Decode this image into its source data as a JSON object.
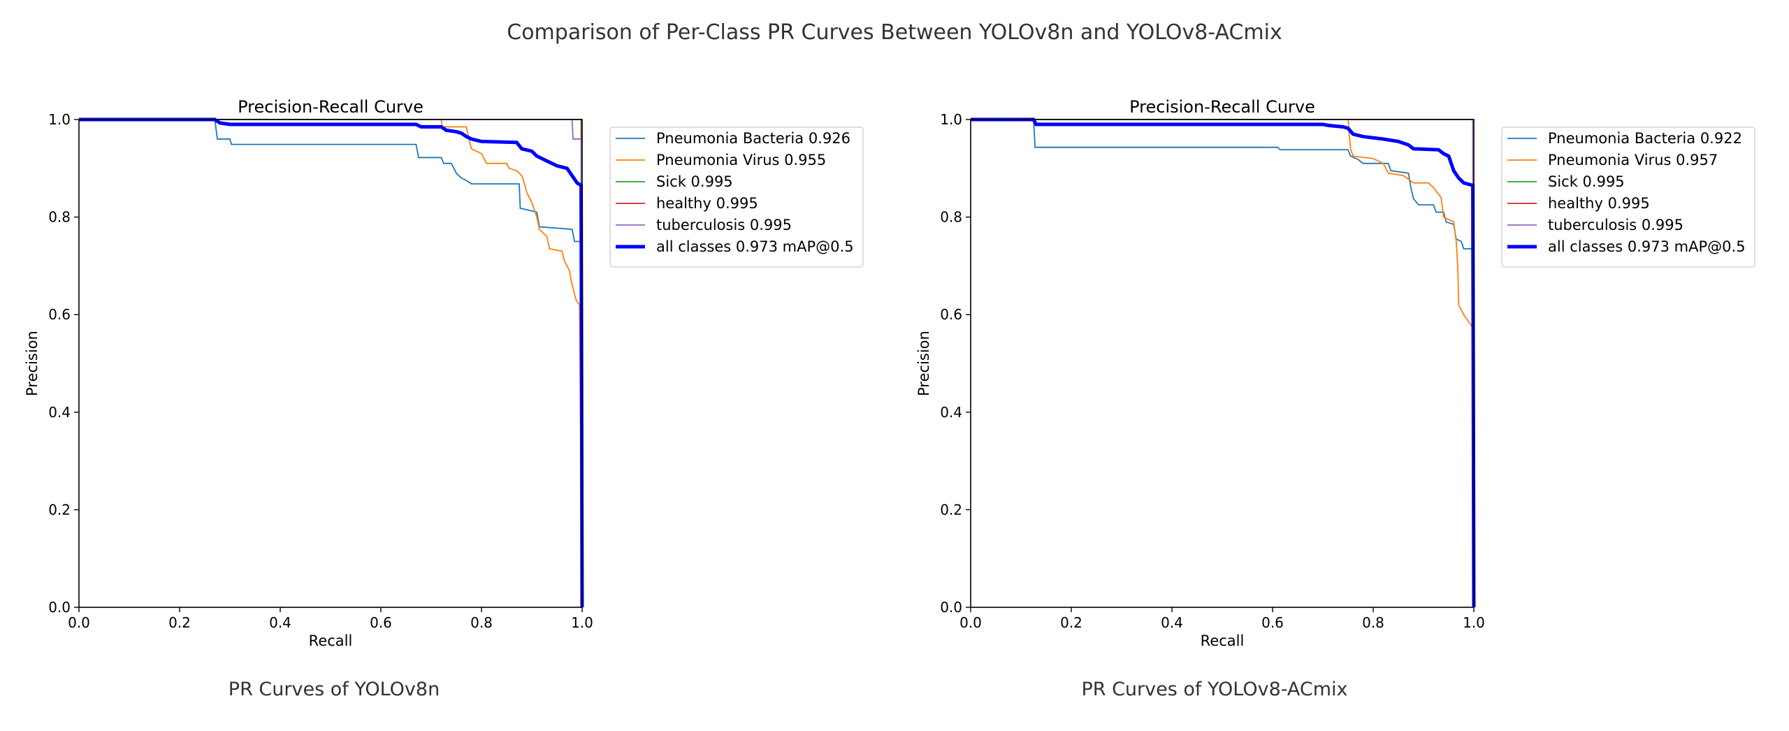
{
  "figure": {
    "title": "Comparison of Per-Class PR Curves Between YOLOv8n and YOLOv8-ACmix",
    "panel_captions": [
      "PR Curves of YOLOv8n",
      "PR Curves of YOLOv8-ACmix"
    ]
  },
  "chart_data": [
    {
      "type": "line",
      "title": "Precision-Recall Curve",
      "xlabel": "Recall",
      "ylabel": "Precision",
      "xlim": [
        0,
        1
      ],
      "ylim": [
        0,
        1
      ],
      "xticks": [
        "0.0",
        "0.2",
        "0.4",
        "0.6",
        "0.8",
        "1.0"
      ],
      "yticks": [
        "0.0",
        "0.2",
        "0.4",
        "0.6",
        "0.8",
        "1.0"
      ],
      "legend_position": "outside-right-top",
      "series": [
        {
          "name": "Pneumonia Bacteria 0.926",
          "color": "#1f77b4",
          "bold": false,
          "points": [
            [
              0,
              1.0
            ],
            [
              0.27,
              1.0
            ],
            [
              0.275,
              0.96
            ],
            [
              0.3,
              0.96
            ],
            [
              0.303,
              0.949
            ],
            [
              0.67,
              0.949
            ],
            [
              0.675,
              0.922
            ],
            [
              0.72,
              0.922
            ],
            [
              0.725,
              0.91
            ],
            [
              0.74,
              0.91
            ],
            [
              0.745,
              0.9
            ],
            [
              0.75,
              0.89
            ],
            [
              0.76,
              0.88
            ],
            [
              0.77,
              0.875
            ],
            [
              0.78,
              0.868
            ],
            [
              0.875,
              0.868
            ],
            [
              0.877,
              0.818
            ],
            [
              0.89,
              0.815
            ],
            [
              0.91,
              0.81
            ],
            [
              0.915,
              0.78
            ],
            [
              0.98,
              0.775
            ],
            [
              0.985,
              0.75
            ],
            [
              0.998,
              0.75
            ],
            [
              1.0,
              0.0
            ]
          ]
        },
        {
          "name": "Pneumonia Virus 0.955",
          "color": "#ff7f0e",
          "bold": false,
          "points": [
            [
              0,
              1.0
            ],
            [
              0.72,
              1.0
            ],
            [
              0.722,
              0.985
            ],
            [
              0.77,
              0.985
            ],
            [
              0.775,
              0.96
            ],
            [
              0.78,
              0.94
            ],
            [
              0.8,
              0.93
            ],
            [
              0.81,
              0.91
            ],
            [
              0.85,
              0.91
            ],
            [
              0.855,
              0.9
            ],
            [
              0.87,
              0.895
            ],
            [
              0.88,
              0.885
            ],
            [
              0.885,
              0.87
            ],
            [
              0.89,
              0.85
            ],
            [
              0.9,
              0.83
            ],
            [
              0.91,
              0.8
            ],
            [
              0.915,
              0.775
            ],
            [
              0.93,
              0.76
            ],
            [
              0.935,
              0.735
            ],
            [
              0.96,
              0.73
            ],
            [
              0.965,
              0.71
            ],
            [
              0.97,
              0.7
            ],
            [
              0.975,
              0.69
            ],
            [
              0.978,
              0.67
            ],
            [
              0.983,
              0.65
            ],
            [
              0.988,
              0.63
            ],
            [
              0.995,
              0.62
            ],
            [
              1.0,
              0.0
            ]
          ]
        },
        {
          "name": "Sick 0.995",
          "color": "#2ca02c",
          "bold": false,
          "points": [
            [
              0,
              1.0
            ],
            [
              0.998,
              1.0
            ],
            [
              1.0,
              0.0
            ]
          ]
        },
        {
          "name": "healthy 0.995",
          "color": "#d62728",
          "bold": false,
          "points": [
            [
              0,
              1.0
            ],
            [
              0.999,
              1.0
            ],
            [
              1.0,
              0.0
            ]
          ]
        },
        {
          "name": "tuberculosis 0.995",
          "color": "#9467bd",
          "bold": false,
          "points": [
            [
              0,
              1.0
            ],
            [
              0.98,
              1.0
            ],
            [
              0.982,
              0.96
            ],
            [
              0.998,
              0.96
            ],
            [
              1.0,
              0.0
            ]
          ]
        },
        {
          "name": "all classes 0.973 mAP@0.5",
          "color": "#0000ff",
          "bold": true,
          "points": [
            [
              0,
              1.0
            ],
            [
              0.27,
              1.0
            ],
            [
              0.28,
              0.993
            ],
            [
              0.3,
              0.99
            ],
            [
              0.67,
              0.99
            ],
            [
              0.68,
              0.985
            ],
            [
              0.72,
              0.985
            ],
            [
              0.73,
              0.978
            ],
            [
              0.75,
              0.975
            ],
            [
              0.76,
              0.972
            ],
            [
              0.77,
              0.965
            ],
            [
              0.78,
              0.96
            ],
            [
              0.8,
              0.955
            ],
            [
              0.87,
              0.953
            ],
            [
              0.88,
              0.94
            ],
            [
              0.9,
              0.935
            ],
            [
              0.91,
              0.925
            ],
            [
              0.93,
              0.915
            ],
            [
              0.95,
              0.905
            ],
            [
              0.97,
              0.9
            ],
            [
              0.98,
              0.885
            ],
            [
              0.99,
              0.87
            ],
            [
              0.998,
              0.865
            ],
            [
              1.0,
              0.0
            ]
          ]
        }
      ]
    },
    {
      "type": "line",
      "title": "Precision-Recall Curve",
      "xlabel": "Recall",
      "ylabel": "Precision",
      "xlim": [
        0,
        1
      ],
      "ylim": [
        0,
        1
      ],
      "xticks": [
        "0.0",
        "0.2",
        "0.4",
        "0.6",
        "0.8",
        "1.0"
      ],
      "yticks": [
        "0.0",
        "0.2",
        "0.4",
        "0.6",
        "0.8",
        "1.0"
      ],
      "legend_position": "outside-right-top",
      "series": [
        {
          "name": "Pneumonia Bacteria 0.922",
          "color": "#1f77b4",
          "bold": false,
          "points": [
            [
              0,
              1.0
            ],
            [
              0.125,
              1.0
            ],
            [
              0.128,
              0.943
            ],
            [
              0.61,
              0.943
            ],
            [
              0.615,
              0.938
            ],
            [
              0.75,
              0.938
            ],
            [
              0.755,
              0.925
            ],
            [
              0.77,
              0.918
            ],
            [
              0.78,
              0.91
            ],
            [
              0.83,
              0.91
            ],
            [
              0.835,
              0.895
            ],
            [
              0.87,
              0.89
            ],
            [
              0.875,
              0.86
            ],
            [
              0.88,
              0.838
            ],
            [
              0.89,
              0.825
            ],
            [
              0.92,
              0.825
            ],
            [
              0.925,
              0.81
            ],
            [
              0.94,
              0.81
            ],
            [
              0.945,
              0.79
            ],
            [
              0.96,
              0.785
            ],
            [
              0.965,
              0.755
            ],
            [
              0.975,
              0.75
            ],
            [
              0.98,
              0.735
            ],
            [
              0.998,
              0.735
            ],
            [
              1.0,
              0.0
            ]
          ]
        },
        {
          "name": "Pneumonia Virus 0.957",
          "color": "#ff7f0e",
          "bold": false,
          "points": [
            [
              0,
              1.0
            ],
            [
              0.75,
              1.0
            ],
            [
              0.755,
              0.94
            ],
            [
              0.76,
              0.925
            ],
            [
              0.8,
              0.92
            ],
            [
              0.82,
              0.91
            ],
            [
              0.83,
              0.89
            ],
            [
              0.86,
              0.885
            ],
            [
              0.88,
              0.87
            ],
            [
              0.91,
              0.87
            ],
            [
              0.92,
              0.86
            ],
            [
              0.935,
              0.84
            ],
            [
              0.94,
              0.8
            ],
            [
              0.96,
              0.79
            ],
            [
              0.965,
              0.75
            ],
            [
              0.968,
              0.7
            ],
            [
              0.97,
              0.62
            ],
            [
              0.98,
              0.6
            ],
            [
              0.99,
              0.585
            ],
            [
              1.0,
              0.57
            ],
            [
              1.0,
              0.0
            ]
          ]
        },
        {
          "name": "Sick 0.995",
          "color": "#2ca02c",
          "bold": false,
          "points": [
            [
              0,
              1.0
            ],
            [
              0.998,
              1.0
            ],
            [
              1.0,
              0.0
            ]
          ]
        },
        {
          "name": "healthy 0.995",
          "color": "#d62728",
          "bold": false,
          "points": [
            [
              0,
              1.0
            ],
            [
              0.999,
              1.0
            ],
            [
              1.0,
              0.0
            ]
          ]
        },
        {
          "name": "tuberculosis 0.995",
          "color": "#9467bd",
          "bold": false,
          "points": [
            [
              0,
              1.0
            ],
            [
              0.998,
              1.0
            ],
            [
              1.0,
              0.0
            ]
          ]
        },
        {
          "name": "all classes 0.973 mAP@0.5",
          "color": "#0000ff",
          "bold": true,
          "points": [
            [
              0,
              1.0
            ],
            [
              0.125,
              1.0
            ],
            [
              0.13,
              0.99
            ],
            [
              0.7,
              0.99
            ],
            [
              0.71,
              0.988
            ],
            [
              0.74,
              0.985
            ],
            [
              0.75,
              0.982
            ],
            [
              0.76,
              0.97
            ],
            [
              0.78,
              0.965
            ],
            [
              0.82,
              0.96
            ],
            [
              0.85,
              0.955
            ],
            [
              0.87,
              0.948
            ],
            [
              0.88,
              0.94
            ],
            [
              0.93,
              0.938
            ],
            [
              0.94,
              0.93
            ],
            [
              0.95,
              0.925
            ],
            [
              0.955,
              0.91
            ],
            [
              0.96,
              0.895
            ],
            [
              0.97,
              0.88
            ],
            [
              0.98,
              0.87
            ],
            [
              0.998,
              0.865
            ],
            [
              1.0,
              0.0
            ]
          ]
        }
      ]
    }
  ]
}
